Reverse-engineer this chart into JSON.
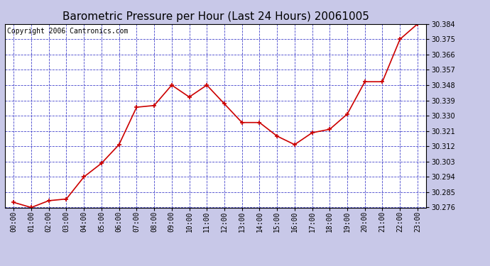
{
  "title": "Barometric Pressure per Hour (Last 24 Hours) 20061005",
  "copyright": "Copyright 2006 Cantronics.com",
  "hours": [
    "00:00",
    "01:00",
    "02:00",
    "03:00",
    "04:00",
    "05:00",
    "06:00",
    "07:00",
    "08:00",
    "09:00",
    "10:00",
    "11:00",
    "12:00",
    "13:00",
    "14:00",
    "15:00",
    "16:00",
    "17:00",
    "18:00",
    "19:00",
    "20:00",
    "21:00",
    "22:00",
    "23:00"
  ],
  "values": [
    30.279,
    30.276,
    30.28,
    30.281,
    30.294,
    30.302,
    30.313,
    30.335,
    30.336,
    30.348,
    30.341,
    30.348,
    30.337,
    30.326,
    30.326,
    30.318,
    30.313,
    30.32,
    30.322,
    30.331,
    30.35,
    30.35,
    30.375,
    30.384
  ],
  "ylim": [
    30.276,
    30.384
  ],
  "yticks": [
    30.276,
    30.285,
    30.294,
    30.303,
    30.312,
    30.321,
    30.33,
    30.339,
    30.348,
    30.357,
    30.366,
    30.375,
    30.384
  ],
  "line_color": "#cc0000",
  "marker_color": "#cc0000",
  "bg_color": "#c8c8e8",
  "plot_bg": "#ffffff",
  "grid_color": "#4444cc",
  "title_color": "#000000",
  "copyright_color": "#000000",
  "title_fontsize": 11,
  "copyright_fontsize": 7,
  "tick_fontsize": 7,
  "ytick_fontsize": 7
}
